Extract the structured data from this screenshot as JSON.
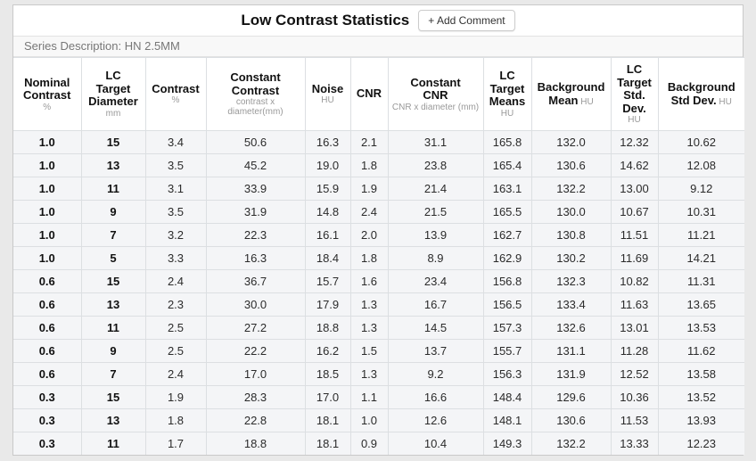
{
  "panel": {
    "title": "Low Contrast Statistics",
    "add_comment_label": "+ Add Comment",
    "series_description": "Series Description: HN 2.5MM"
  },
  "table": {
    "columns": [
      {
        "key": "nominal-contrast",
        "label": "Nominal Contrast",
        "label_lines": [
          "Nominal",
          "Contrast"
        ],
        "unit": "%",
        "unit_inline": false
      },
      {
        "key": "lc-target-diameter",
        "label": "LC Target Diameter",
        "label_lines": [
          "LC",
          "Target",
          "Diameter"
        ],
        "unit": "mm",
        "unit_inline": false
      },
      {
        "key": "contrast",
        "label": "Contrast",
        "label_lines": [
          "Contrast"
        ],
        "unit": "%",
        "unit_inline": false
      },
      {
        "key": "constant-contrast",
        "label": "Constant Contrast",
        "label_lines": [
          "Constant",
          "Contrast"
        ],
        "unit": "contrast x diameter(mm)",
        "unit_inline": false
      },
      {
        "key": "noise",
        "label": "Noise",
        "label_lines": [
          "Noise"
        ],
        "unit": "HU",
        "unit_inline": false
      },
      {
        "key": "cnr",
        "label": "CNR",
        "label_lines": [
          "CNR"
        ],
        "unit": "",
        "unit_inline": false
      },
      {
        "key": "constant-cnr",
        "label": "Constant CNR",
        "label_lines": [
          "Constant",
          "CNR"
        ],
        "unit": "CNR x diameter (mm)",
        "unit_inline": false
      },
      {
        "key": "lc-target-means",
        "label": "LC Target Means",
        "label_lines": [
          "LC",
          "Target",
          "Means"
        ],
        "unit": "HU",
        "unit_inline": false
      },
      {
        "key": "background-mean",
        "label": "Background Mean",
        "label_lines": [
          "Background",
          "Mean"
        ],
        "unit": "HU",
        "unit_inline": true
      },
      {
        "key": "lc-target-std-dev",
        "label": "LC Target Std. Dev.",
        "label_lines": [
          "LC",
          "Target",
          "Std.",
          "Dev."
        ],
        "unit": "HU",
        "unit_inline": false
      },
      {
        "key": "background-std-dev",
        "label": "Background Std Dev.",
        "label_lines": [
          "Background",
          "Std Dev."
        ],
        "unit": "HU",
        "unit_inline": true
      }
    ],
    "rows": [
      [
        "1.0",
        "15",
        "3.4",
        "50.6",
        "16.3",
        "2.1",
        "31.1",
        "165.8",
        "132.0",
        "12.32",
        "10.62"
      ],
      [
        "1.0",
        "13",
        "3.5",
        "45.2",
        "19.0",
        "1.8",
        "23.8",
        "165.4",
        "130.6",
        "14.62",
        "12.08"
      ],
      [
        "1.0",
        "11",
        "3.1",
        "33.9",
        "15.9",
        "1.9",
        "21.4",
        "163.1",
        "132.2",
        "13.00",
        "9.12"
      ],
      [
        "1.0",
        "9",
        "3.5",
        "31.9",
        "14.8",
        "2.4",
        "21.5",
        "165.5",
        "130.0",
        "10.67",
        "10.31"
      ],
      [
        "1.0",
        "7",
        "3.2",
        "22.3",
        "16.1",
        "2.0",
        "13.9",
        "162.7",
        "130.8",
        "11.51",
        "11.21"
      ],
      [
        "1.0",
        "5",
        "3.3",
        "16.3",
        "18.4",
        "1.8",
        "8.9",
        "162.9",
        "130.2",
        "11.69",
        "14.21"
      ],
      [
        "0.6",
        "15",
        "2.4",
        "36.7",
        "15.7",
        "1.6",
        "23.4",
        "156.8",
        "132.3",
        "10.82",
        "11.31"
      ],
      [
        "0.6",
        "13",
        "2.3",
        "30.0",
        "17.9",
        "1.3",
        "16.7",
        "156.5",
        "133.4",
        "11.63",
        "13.65"
      ],
      [
        "0.6",
        "11",
        "2.5",
        "27.2",
        "18.8",
        "1.3",
        "14.5",
        "157.3",
        "132.6",
        "13.01",
        "13.53"
      ],
      [
        "0.6",
        "9",
        "2.5",
        "22.2",
        "16.2",
        "1.5",
        "13.7",
        "155.7",
        "131.1",
        "11.28",
        "11.62"
      ],
      [
        "0.6",
        "7",
        "2.4",
        "17.0",
        "18.5",
        "1.3",
        "9.2",
        "156.3",
        "131.9",
        "12.52",
        "13.58"
      ],
      [
        "0.3",
        "15",
        "1.9",
        "28.3",
        "17.0",
        "1.1",
        "16.6",
        "148.4",
        "129.6",
        "10.36",
        "13.52"
      ],
      [
        "0.3",
        "13",
        "1.8",
        "22.8",
        "18.1",
        "1.0",
        "12.6",
        "148.1",
        "130.6",
        "11.53",
        "13.93"
      ],
      [
        "0.3",
        "11",
        "1.7",
        "18.8",
        "18.1",
        "0.9",
        "10.4",
        "149.3",
        "132.2",
        "13.33",
        "12.23"
      ]
    ]
  },
  "colors": {
    "panel_border": "#c9c9c9",
    "cell_border": "#dcdfe2",
    "row_bg": "#f4f5f7",
    "series_bg": "#f8f8f8",
    "series_text": "#777777",
    "unit_text": "#999999"
  }
}
